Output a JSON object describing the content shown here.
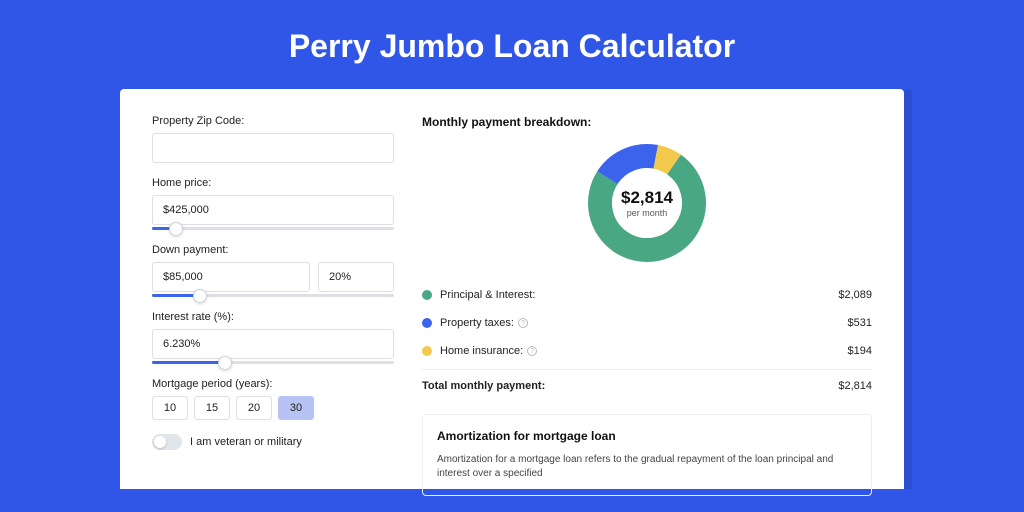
{
  "title": "Perry Jumbo Loan Calculator",
  "colors": {
    "page_bg": "#3056e8",
    "card_shadow": "#2b4dd1",
    "card_bg": "#ffffff",
    "input_border": "#dcdfe4",
    "slider_fill": "#3b63ec",
    "period_active_bg": "#b6c3f4"
  },
  "form": {
    "zip": {
      "label": "Property Zip Code:",
      "value": ""
    },
    "home_price": {
      "label": "Home price:",
      "value": "$425,000",
      "slider_pct": 10
    },
    "down_payment": {
      "label": "Down payment:",
      "value": "$85,000",
      "pct_value": "20%",
      "slider_pct": 20
    },
    "interest_rate": {
      "label": "Interest rate (%):",
      "value": "6.230%",
      "slider_pct": 30
    },
    "mortgage_period": {
      "label": "Mortgage period (years):",
      "options": [
        "10",
        "15",
        "20",
        "30"
      ],
      "selected": "30"
    },
    "veteran": {
      "label": "I am veteran or military",
      "checked": false
    }
  },
  "breakdown": {
    "title": "Monthly payment breakdown:",
    "center_amount": "$2,814",
    "center_sub": "per month",
    "items": [
      {
        "label": "Principal & Interest:",
        "value": "$2,089",
        "color": "#4aa784",
        "has_info": false,
        "pct": 74.2
      },
      {
        "label": "Property taxes:",
        "value": "$531",
        "color": "#3b63ec",
        "has_info": true,
        "pct": 18.9
      },
      {
        "label": "Home insurance:",
        "value": "$194",
        "color": "#f2c94c",
        "has_info": true,
        "pct": 6.9
      }
    ],
    "total": {
      "label": "Total monthly payment:",
      "value": "$2,814"
    }
  },
  "amort": {
    "title": "Amortization for mortgage loan",
    "text": "Amortization for a mortgage loan refers to the gradual repayment of the loan principal and interest over a specified"
  },
  "donut": {
    "radius": 47,
    "stroke": 24,
    "circumference": 295.31
  }
}
